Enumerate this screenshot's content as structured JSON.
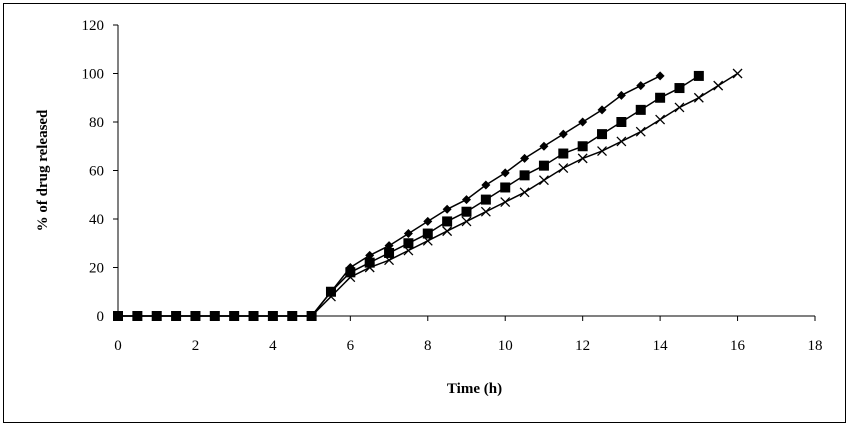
{
  "chart_data": {
    "type": "line",
    "title": "",
    "xlabel": "Time (h)",
    "ylabel": "% of drug released",
    "xlim": [
      0,
      18
    ],
    "ylim": [
      0,
      120
    ],
    "xticks": [
      0,
      2,
      4,
      6,
      8,
      10,
      12,
      14,
      16,
      18
    ],
    "yticks": [
      0,
      20,
      40,
      60,
      80,
      100,
      120
    ],
    "grid": false,
    "legend": "none",
    "series": [
      {
        "marker": "diamond",
        "color": "#000000",
        "x": [
          0,
          0.5,
          1,
          1.5,
          2,
          2.5,
          3,
          3.5,
          4,
          4.5,
          5,
          5.5,
          6,
          6.5,
          7,
          7.5,
          8,
          8.5,
          9,
          9.5,
          10,
          10.5,
          11,
          11.5,
          12,
          12.5,
          13,
          13.5,
          14
        ],
        "y": [
          0,
          0,
          0,
          0,
          0,
          0,
          0,
          0,
          0,
          0,
          0,
          10,
          20,
          25,
          29,
          34,
          39,
          44,
          48,
          54,
          59,
          65,
          70,
          75,
          80,
          85,
          91,
          95,
          99
        ]
      },
      {
        "marker": "square",
        "color": "#000000",
        "x": [
          0,
          0.5,
          1,
          1.5,
          2,
          2.5,
          3,
          3.5,
          4,
          4.5,
          5,
          5.5,
          6,
          6.5,
          7,
          7.5,
          8,
          8.5,
          9,
          9.5,
          10,
          10.5,
          11,
          11.5,
          12,
          12.5,
          13,
          13.5,
          14,
          14.5,
          15
        ],
        "y": [
          0,
          0,
          0,
          0,
          0,
          0,
          0,
          0,
          0,
          0,
          0,
          10,
          18,
          22,
          26,
          30,
          34,
          39,
          43,
          48,
          53,
          58,
          62,
          67,
          70,
          75,
          80,
          85,
          90,
          94,
          99
        ]
      },
      {
        "marker": "cross",
        "color": "#000000",
        "x": [
          0,
          0.5,
          1,
          1.5,
          2,
          2.5,
          3,
          3.5,
          4,
          4.5,
          5,
          5.5,
          6,
          6.5,
          7,
          7.5,
          8,
          8.5,
          9,
          9.5,
          10,
          10.5,
          11,
          11.5,
          12,
          12.5,
          13,
          13.5,
          14,
          14.5,
          15,
          15.5,
          16
        ],
        "y": [
          0,
          0,
          0,
          0,
          0,
          0,
          0,
          0,
          0,
          0,
          0,
          8,
          16,
          20,
          23,
          27,
          31,
          35,
          39,
          43,
          47,
          51,
          56,
          61,
          65,
          68,
          72,
          76,
          81,
          86,
          90,
          95,
          100
        ]
      }
    ]
  }
}
